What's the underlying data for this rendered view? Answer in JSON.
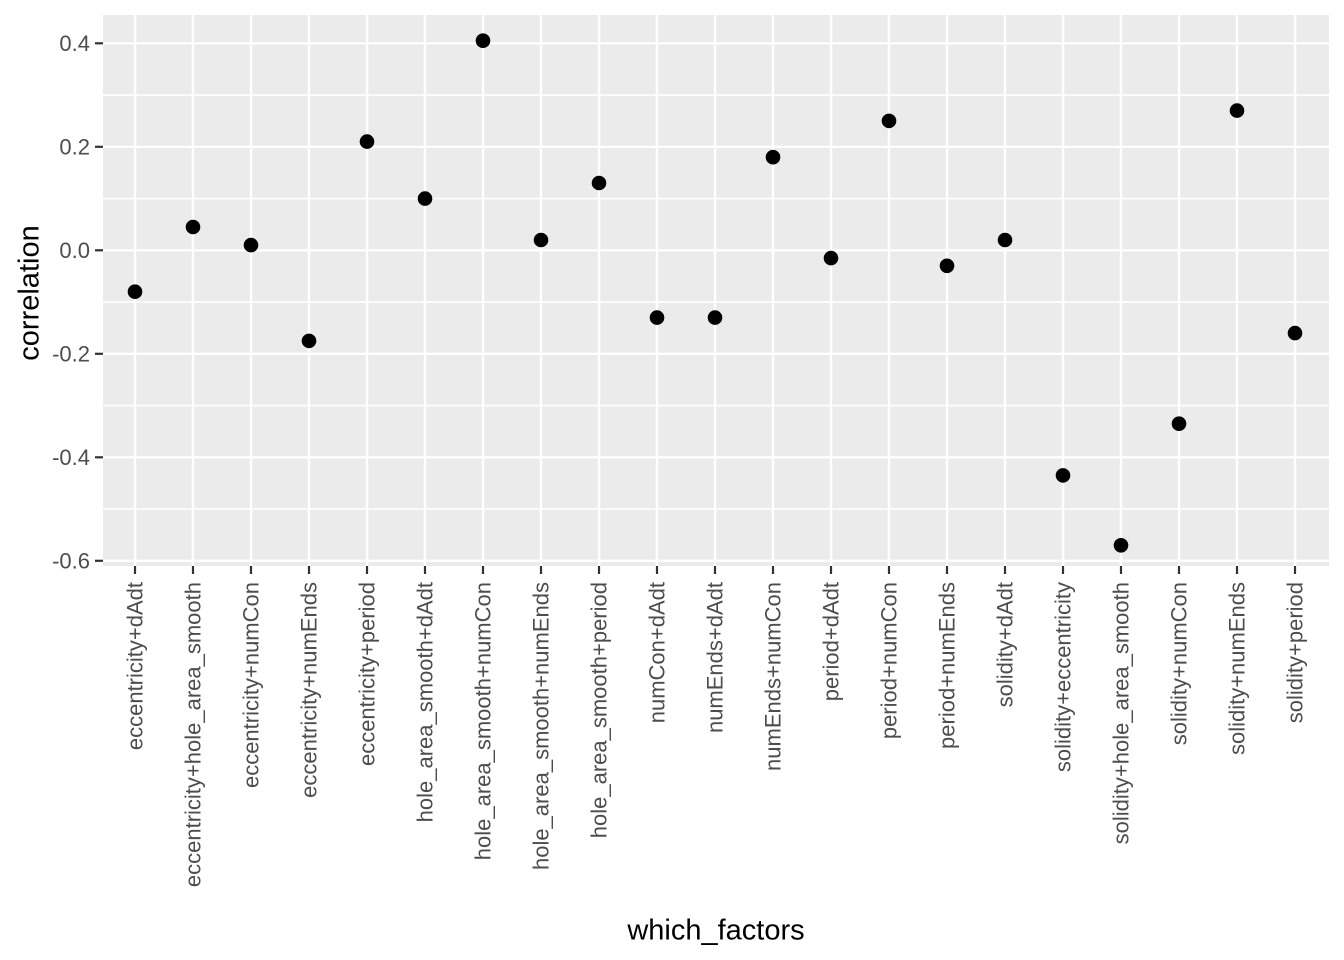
{
  "chart_data": {
    "type": "scatter",
    "title": "",
    "xlabel": "which_factors",
    "ylabel": "correlation",
    "categories": [
      "eccentricity+dAdt",
      "eccentricity+hole_area_smooth",
      "eccentricity+numCon",
      "eccentricity+numEnds",
      "eccentricity+period",
      "hole_area_smooth+dAdt",
      "hole_area_smooth+numCon",
      "hole_area_smooth+numEnds",
      "hole_area_smooth+period",
      "numCon+dAdt",
      "numEnds+dAdt",
      "numEnds+numCon",
      "period+dAdt",
      "period+numCon",
      "period+numEnds",
      "solidity+dAdt",
      "solidity+eccentricity",
      "solidity+hole_area_smooth",
      "solidity+numCon",
      "solidity+numEnds",
      "solidity+period"
    ],
    "values": [
      -0.08,
      0.045,
      0.01,
      -0.175,
      0.21,
      0.1,
      0.405,
      0.02,
      0.13,
      -0.13,
      -0.13,
      0.18,
      -0.015,
      0.25,
      -0.03,
      0.02,
      -0.435,
      -0.57,
      -0.335,
      0.27,
      -0.16
    ],
    "y_axis": {
      "tick_labels": [
        "0.4",
        "0.2",
        "0.0",
        "-0.2",
        "-0.4",
        "-0.6"
      ],
      "tick_values": [
        0.4,
        0.2,
        0.0,
        -0.2,
        -0.4,
        -0.6
      ],
      "minor_tick_values": [
        0.3,
        0.1,
        -0.1,
        -0.3,
        -0.5
      ],
      "range_shown": [
        -0.61,
        0.455
      ]
    },
    "x_label_rotation_degrees": 90,
    "legend": "none",
    "grid": "on",
    "style": {
      "panel_background": "#EBEBEB",
      "gridline_color": "#FFFFFF",
      "point_color": "#000000",
      "tick_mark_color": "#333333",
      "tick_label_color": "#4D4D4D",
      "axis_title_color": "#000000",
      "figure_background": "#FFFFFF"
    }
  }
}
